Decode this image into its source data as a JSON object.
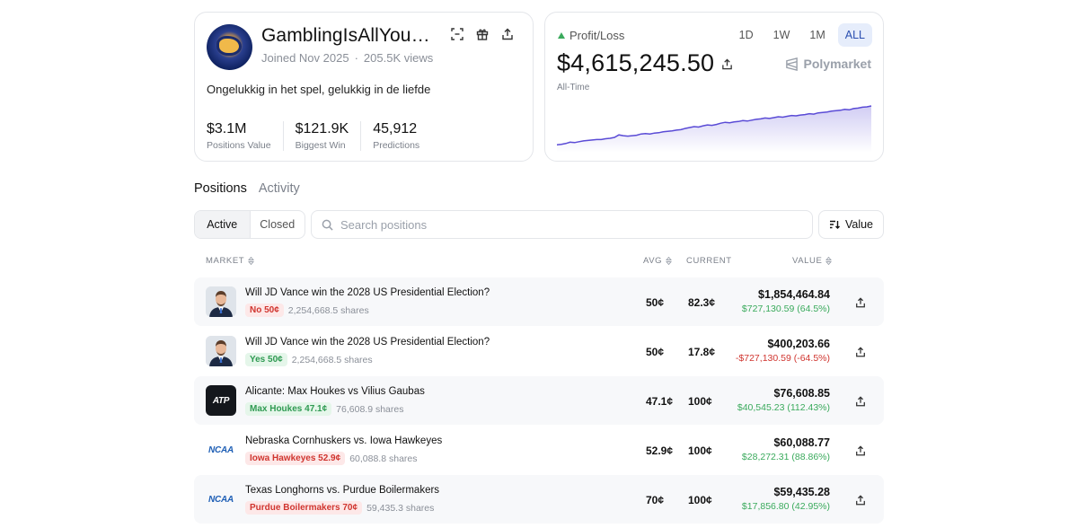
{
  "profile": {
    "username": "GamblingIsAllYouNeed",
    "joined": "Joined Nov 2025",
    "views": "205.5K views",
    "bio": "Ongelukkig in het spel, gelukkig in de liefde",
    "stats": [
      {
        "value": "$3.1M",
        "label": "Positions Value"
      },
      {
        "value": "$121.9K",
        "label": "Biggest Win"
      },
      {
        "value": "45,912",
        "label": "Predictions"
      }
    ]
  },
  "pnl": {
    "title": "Profit/Loss",
    "ranges": [
      "1D",
      "1W",
      "1M",
      "ALL"
    ],
    "selected_range": "ALL",
    "value": "$4,615,245.50",
    "brand": "Polymarket",
    "period": "All-Time",
    "color": "#5a4bd6",
    "series": [
      0.1,
      0.11,
      0.13,
      0.16,
      0.15,
      0.17,
      0.19,
      0.2,
      0.21,
      0.22,
      0.22,
      0.24,
      0.25,
      0.27,
      0.33,
      0.31,
      0.3,
      0.31,
      0.32,
      0.35,
      0.36,
      0.35,
      0.37,
      0.38,
      0.4,
      0.41,
      0.42,
      0.44,
      0.45,
      0.48,
      0.5,
      0.52,
      0.51,
      0.54,
      0.56,
      0.55,
      0.57,
      0.6,
      0.62,
      0.61,
      0.63,
      0.64,
      0.66,
      0.65,
      0.67,
      0.69,
      0.7,
      0.72,
      0.71,
      0.73,
      0.75,
      0.74,
      0.76,
      0.78,
      0.77,
      0.79,
      0.8,
      0.82,
      0.81,
      0.84,
      0.85,
      0.86,
      0.88,
      0.89,
      0.9,
      0.92,
      0.91,
      0.94,
      0.95,
      0.97,
      0.98,
      1.0
    ]
  },
  "tabs": {
    "positions": "Positions",
    "activity": "Activity"
  },
  "filter": {
    "active": "Active",
    "closed": "Closed"
  },
  "search": {
    "placeholder": "Search positions"
  },
  "sort": {
    "label": "Value"
  },
  "columns": {
    "market": "MARKET",
    "avg": "AVG",
    "current": "CURRENT",
    "value": "VALUE"
  },
  "rows": [
    {
      "title": "Will JD Vance win the 2028 US Presidential Election?",
      "outcome": "No 50¢",
      "outcome_color": "red",
      "shares": "2,254,668.5 shares",
      "avg": "50¢",
      "current": "82.3¢",
      "value": "$1,854,464.84",
      "change": "$727,130.59 (64.5%)",
      "change_dir": "pos",
      "thumb": "vance"
    },
    {
      "title": "Will JD Vance win the 2028 US Presidential Election?",
      "outcome": "Yes 50¢",
      "outcome_color": "green",
      "shares": "2,254,668.5 shares",
      "avg": "50¢",
      "current": "17.8¢",
      "value": "$400,203.66",
      "change": "-$727,130.59 (-64.5%)",
      "change_dir": "neg",
      "thumb": "vance"
    },
    {
      "title": "Alicante: Max Houkes vs Vilius Gaubas",
      "outcome": "Max Houkes 47.1¢",
      "outcome_color": "green",
      "shares": "76,608.9 shares",
      "avg": "47.1¢",
      "current": "100¢",
      "value": "$76,608.85",
      "change": "$40,545.23 (112.43%)",
      "change_dir": "pos",
      "thumb": "atp",
      "thumb_text": "ATP"
    },
    {
      "title": "Nebraska Cornhuskers vs. Iowa Hawkeyes",
      "outcome": "Iowa Hawkeyes 52.9¢",
      "outcome_color": "red",
      "shares": "60,088.8 shares",
      "avg": "52.9¢",
      "current": "100¢",
      "value": "$60,088.77",
      "change": "$28,272.31 (88.86%)",
      "change_dir": "pos",
      "thumb": "ncaa",
      "thumb_text": "NCAA"
    },
    {
      "title": "Texas Longhorns vs. Purdue Boilermakers",
      "outcome": "Purdue Boilermakers 70¢",
      "outcome_color": "red",
      "shares": "59,435.3 shares",
      "avg": "70¢",
      "current": "100¢",
      "value": "$59,435.28",
      "change": "$17,856.80 (42.95%)",
      "change_dir": "pos",
      "thumb": "ncaa",
      "thumb_text": "NCAA"
    }
  ]
}
